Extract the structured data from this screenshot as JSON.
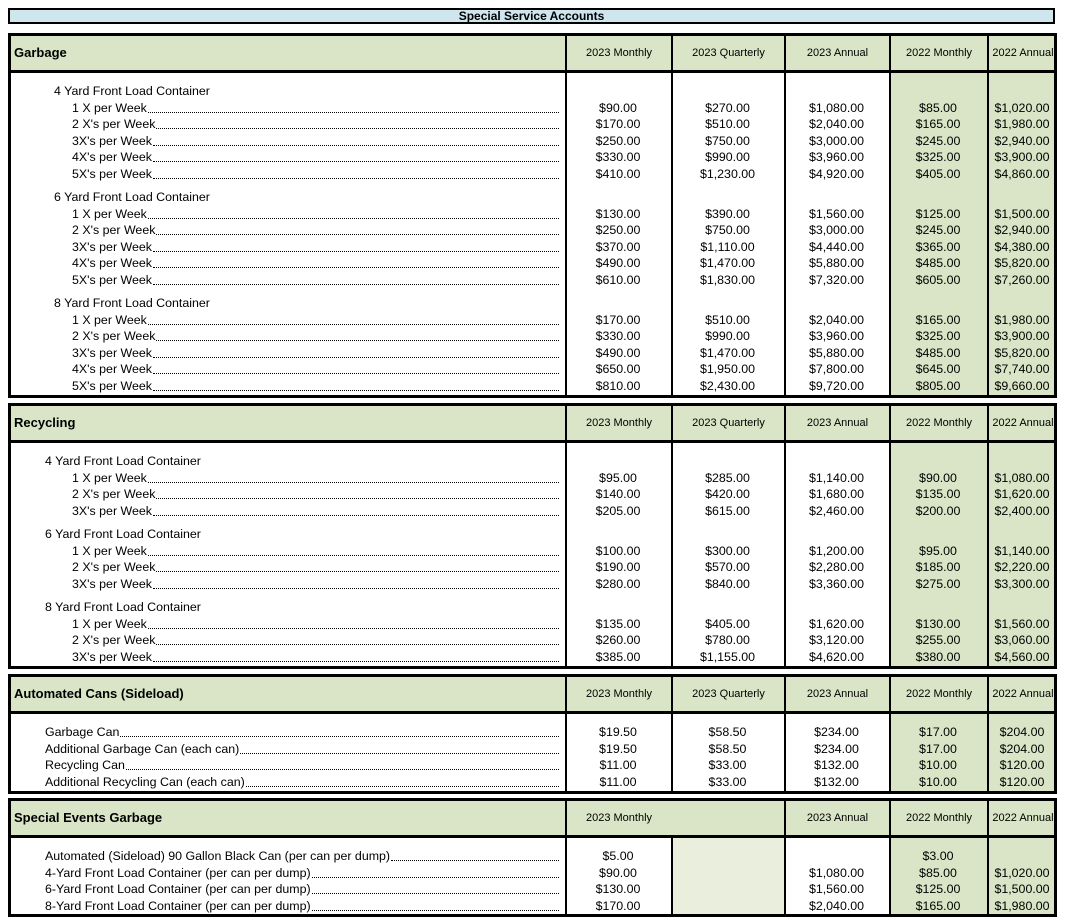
{
  "title": "Special Service Accounts",
  "sections": [
    {
      "id": "garbage",
      "title": "Garbage",
      "columns": [
        "2023 Monthly",
        "2023 Quarterly",
        "2023 Annual",
        "2022 Monthly",
        "2022 Annual"
      ],
      "groups": [
        {
          "label": "4 Yard Front Load Container",
          "rows": [
            {
              "label": "1 X per Week",
              "values": [
                "$90.00",
                "$270.00",
                "$1,080.00",
                "$85.00",
                "$1,020.00"
              ]
            },
            {
              "label": "2 X's per Week",
              "values": [
                "$170.00",
                "$510.00",
                "$2,040.00",
                "$165.00",
                "$1,980.00"
              ]
            },
            {
              "label": "3X's per Week",
              "values": [
                "$250.00",
                "$750.00",
                "$3,000.00",
                "$245.00",
                "$2,940.00"
              ]
            },
            {
              "label": "4X's per Week",
              "values": [
                "$330.00",
                "$990.00",
                "$3,960.00",
                "$325.00",
                "$3,900.00"
              ]
            },
            {
              "label": "5X's per Week",
              "values": [
                "$410.00",
                "$1,230.00",
                "$4,920.00",
                "$405.00",
                "$4,860.00"
              ]
            }
          ]
        },
        {
          "label": "6 Yard Front Load Container",
          "rows": [
            {
              "label": "1 X per Week",
              "values": [
                "$130.00",
                "$390.00",
                "$1,560.00",
                "$125.00",
                "$1,500.00"
              ]
            },
            {
              "label": "2 X's per Week",
              "values": [
                "$250.00",
                "$750.00",
                "$3,000.00",
                "$245.00",
                "$2,940.00"
              ]
            },
            {
              "label": "3X's per Week",
              "values": [
                "$370.00",
                "$1,110.00",
                "$4,440.00",
                "$365.00",
                "$4,380.00"
              ]
            },
            {
              "label": "4X's per Week",
              "values": [
                "$490.00",
                "$1,470.00",
                "$5,880.00",
                "$485.00",
                "$5,820.00"
              ]
            },
            {
              "label": "5X's per Week",
              "values": [
                "$610.00",
                "$1,830.00",
                "$7,320.00",
                "$605.00",
                "$7,260.00"
              ]
            }
          ]
        },
        {
          "label": "8 Yard Front Load Container",
          "rows": [
            {
              "label": "1 X per Week",
              "values": [
                "$170.00",
                "$510.00",
                "$2,040.00",
                "$165.00",
                "$1,980.00"
              ]
            },
            {
              "label": "2 X's per Week",
              "values": [
                "$330.00",
                "$990.00",
                "$3,960.00",
                "$325.00",
                "$3,900.00"
              ]
            },
            {
              "label": "3X's per Week",
              "values": [
                "$490.00",
                "$1,470.00",
                "$5,880.00",
                "$485.00",
                "$5,820.00"
              ]
            },
            {
              "label": "4X's per Week",
              "values": [
                "$650.00",
                "$1,950.00",
                "$7,800.00",
                "$645.00",
                "$7,740.00"
              ]
            },
            {
              "label": "5X's per Week",
              "values": [
                "$810.00",
                "$2,430.00",
                "$9,720.00",
                "$805.00",
                "$9,660.00"
              ]
            }
          ]
        }
      ]
    },
    {
      "id": "recycling",
      "title": "Recycling",
      "columns": [
        "2023 Monthly",
        "2023 Quarterly",
        "2023 Annual",
        "2022 Monthly",
        "2022 Annual"
      ],
      "groups": [
        {
          "label": "4 Yard Front Load Container",
          "rows": [
            {
              "label": "1 X per Week",
              "values": [
                "$95.00",
                "$285.00",
                "$1,140.00",
                "$90.00",
                "$1,080.00"
              ]
            },
            {
              "label": "2 X's per Week",
              "values": [
                "$140.00",
                "$420.00",
                "$1,680.00",
                "$135.00",
                "$1,620.00"
              ]
            },
            {
              "label": "3X's per Week",
              "values": [
                "$205.00",
                "$615.00",
                "$2,460.00",
                "$200.00",
                "$2,400.00"
              ]
            }
          ]
        },
        {
          "label": "6 Yard Front Load Container",
          "rows": [
            {
              "label": "1 X per Week",
              "values": [
                "$100.00",
                "$300.00",
                "$1,200.00",
                "$95.00",
                "$1,140.00"
              ]
            },
            {
              "label": "2 X's per Week",
              "values": [
                "$190.00",
                "$570.00",
                "$2,280.00",
                "$185.00",
                "$2,220.00"
              ]
            },
            {
              "label": "3X's per Week",
              "values": [
                "$280.00",
                "$840.00",
                "$3,360.00",
                "$275.00",
                "$3,300.00"
              ]
            }
          ]
        },
        {
          "label": "8 Yard Front Load Container",
          "rows": [
            {
              "label": "1 X per Week",
              "values": [
                "$135.00",
                "$405.00",
                "$1,620.00",
                "$130.00",
                "$1,560.00"
              ]
            },
            {
              "label": "2 X's per Week",
              "values": [
                "$260.00",
                "$780.00",
                "$3,120.00",
                "$255.00",
                "$3,060.00"
              ]
            },
            {
              "label": "3X's per Week",
              "values": [
                "$385.00",
                "$1,155.00",
                "$4,620.00",
                "$380.00",
                "$4,560.00"
              ]
            }
          ]
        }
      ]
    },
    {
      "id": "automated",
      "title": "Automated Cans (Sideload)",
      "columns": [
        "2023 Monthly",
        "2023 Quarterly",
        "2023 Annual",
        "2022 Monthly",
        "2022 Annual"
      ],
      "groups": [
        {
          "label": "",
          "rows": [
            {
              "label": "Garbage Can",
              "values": [
                "$19.50",
                "$58.50",
                "$234.00",
                "$17.00",
                "$204.00"
              ]
            },
            {
              "label": "Additional Garbage Can (each can)",
              "values": [
                "$19.50",
                "$58.50",
                "$234.00",
                "$17.00",
                "$204.00"
              ]
            },
            {
              "label": "Recycling Can",
              "values": [
                "$11.00",
                "$33.00",
                "$132.00",
                "$10.00",
                "$120.00"
              ]
            },
            {
              "label": "Additional Recycling Can (each can)",
              "values": [
                "$11.00",
                "$33.00",
                "$132.00",
                "$10.00",
                "$120.00"
              ]
            }
          ]
        }
      ]
    },
    {
      "id": "special-events",
      "title": "Special Events Garbage",
      "columns": [
        "2023 Monthly",
        "",
        "2023 Annual",
        "2022 Monthly",
        "2022 Annual"
      ],
      "groups": [
        {
          "label": "",
          "rows": [
            {
              "label": "Automated (Sideload) 90 Gallon Black Can (per can per dump)",
              "values": [
                "$5.00",
                "",
                "",
                "$3.00",
                ""
              ]
            },
            {
              "label": "4-Yard Front Load Container (per can per dump)",
              "values": [
                "$90.00",
                "",
                "$1,080.00",
                "$85.00",
                "$1,020.00"
              ]
            },
            {
              "label": "6-Yard Front Load Container (per can per dump)",
              "values": [
                "$130.00",
                "",
                "$1,560.00",
                "$125.00",
                "$1,500.00"
              ]
            },
            {
              "label": "8-Yard Front Load Container (per can per dump)",
              "values": [
                "$170.00",
                "",
                "$2,040.00",
                "$165.00",
                "$1,980.00"
              ]
            }
          ]
        }
      ]
    }
  ]
}
